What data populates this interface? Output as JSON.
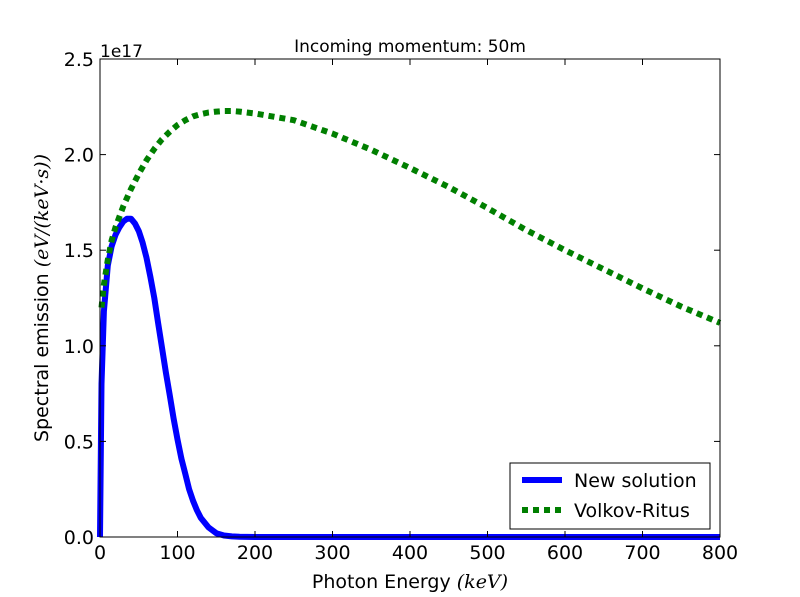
{
  "chart_data": {
    "type": "line",
    "title": "Incoming momentum: 50m",
    "xlabel": "Photon Energy",
    "xlabel_unit": "(keV)",
    "ylabel": "Spectral emission",
    "ylabel_unit": "(eV/(keV·s))",
    "y_offset_label": "1e17",
    "xlim": [
      0,
      800
    ],
    "ylim": [
      0,
      2.5
    ],
    "xticks": [
      "0",
      "100",
      "200",
      "300",
      "400",
      "500",
      "600",
      "700",
      "800"
    ],
    "yticks": [
      "0.0",
      "0.5",
      "1.0",
      "1.5",
      "2.0",
      "2.5"
    ],
    "grid": false,
    "legend_position": "lower-right",
    "series": [
      {
        "name": "New solution",
        "color": "#0000ff",
        "style": "solid",
        "x": [
          0,
          2,
          5,
          10,
          15,
          20,
          25,
          30,
          35,
          40,
          45,
          50,
          55,
          60,
          65,
          70,
          75,
          80,
          85,
          90,
          95,
          100,
          105,
          110,
          115,
          120,
          125,
          130,
          140,
          150,
          160,
          170,
          180,
          190,
          200,
          250,
          300,
          400,
          500,
          600,
          700,
          800
        ],
        "values": [
          0,
          0.8,
          1.18,
          1.42,
          1.52,
          1.58,
          1.62,
          1.65,
          1.665,
          1.665,
          1.64,
          1.6,
          1.54,
          1.46,
          1.36,
          1.25,
          1.12,
          0.99,
          0.86,
          0.74,
          0.62,
          0.51,
          0.41,
          0.33,
          0.25,
          0.19,
          0.14,
          0.1,
          0.05,
          0.02,
          0.008,
          0.003,
          0.001,
          0.0005,
          0,
          0,
          0,
          0,
          0,
          0,
          0,
          0
        ]
      },
      {
        "name": "Volkov-Ritus",
        "color": "#007f00",
        "style": "dotted",
        "x": [
          2,
          5,
          10,
          15,
          20,
          30,
          40,
          50,
          60,
          70,
          80,
          90,
          100,
          110,
          120,
          130,
          140,
          150,
          160,
          170,
          180,
          200,
          250,
          300,
          350,
          400,
          450,
          500,
          550,
          600,
          650,
          700,
          750,
          800
        ],
        "values": [
          1.2,
          1.32,
          1.45,
          1.55,
          1.62,
          1.73,
          1.82,
          1.9,
          1.97,
          2.03,
          2.08,
          2.12,
          2.155,
          2.18,
          2.2,
          2.212,
          2.22,
          2.225,
          2.228,
          2.228,
          2.225,
          2.215,
          2.18,
          2.11,
          2.025,
          1.93,
          1.83,
          1.72,
          1.605,
          1.5,
          1.4,
          1.3,
          1.205,
          1.12
        ]
      }
    ]
  }
}
